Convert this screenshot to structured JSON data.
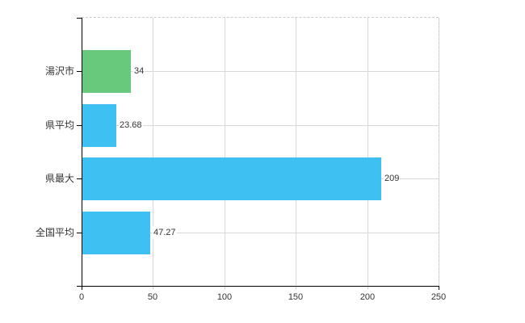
{
  "chart_data": {
    "type": "bar",
    "orientation": "horizontal",
    "title": "",
    "categories": [
      "湯沢市",
      "県平均",
      "県最大",
      "全国平均"
    ],
    "values": [
      34,
      23.68,
      209,
      47.27
    ],
    "value_labels": [
      "34",
      "23.68",
      "209",
      "47.27"
    ],
    "bar_colors": [
      "#68c97d",
      "#3ec1f2",
      "#3ec1f2",
      "#3ec1f2"
    ],
    "xlabel": "",
    "ylabel": "",
    "xlim": [
      0,
      250
    ],
    "x_tick_values": [
      0,
      50,
      100,
      150,
      200,
      250
    ],
    "x_tick_labels": [
      "0",
      "50",
      "100",
      "150",
      "200",
      "250"
    ],
    "grid": true,
    "legend": false,
    "colors": {
      "grid": "#d8d8d8",
      "dashed_border": "#cccccc",
      "axis": "#000000",
      "text": "#333333",
      "background": "#ffffff",
      "highlight_bar": "#68c97d",
      "default_bar": "#3ec1f2"
    }
  }
}
